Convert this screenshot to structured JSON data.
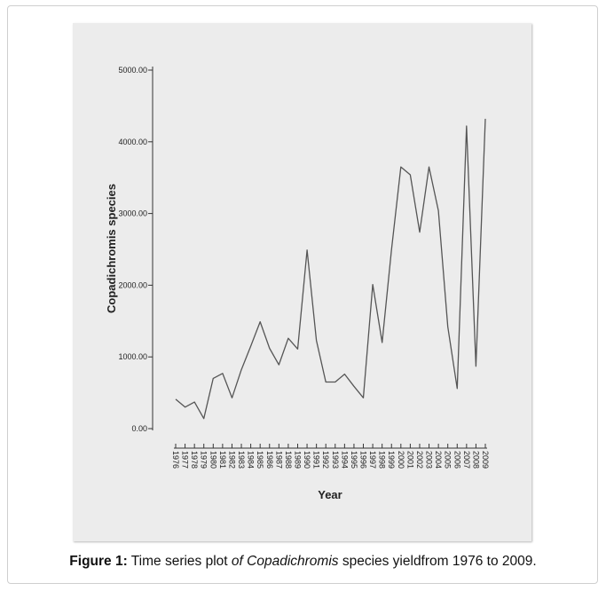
{
  "figure": {
    "caption_label": "Figure 1:",
    "caption_text_1": " Time series plot ",
    "caption_text_2": "of Copadichromis",
    "caption_text_3": " species yieldfrom 1976 to 2009."
  },
  "chart_data": {
    "type": "line",
    "title": "",
    "xlabel": "Year",
    "ylabel": "Copadichromis species",
    "ylim": [
      0,
      5000
    ],
    "yticks": [
      "0.00",
      "1000.00",
      "2000.00",
      "3000.00",
      "4000.00",
      "5000.00"
    ],
    "ytick_values": [
      0,
      1000,
      2000,
      3000,
      4000,
      5000
    ],
    "grid": false,
    "line_color": "#555555",
    "x": [
      "1976",
      "1977",
      "1978",
      "1979",
      "1980",
      "1981",
      "1982",
      "1983",
      "1984",
      "1985",
      "1986",
      "1987",
      "1988",
      "1989",
      "1990",
      "1991",
      "1992",
      "1993",
      "1994",
      "1995",
      "1996",
      "1997",
      "1998",
      "1999",
      "2000",
      "2001",
      "2002",
      "2003",
      "2004",
      "2005",
      "2006",
      "2007",
      "2008",
      "2009"
    ],
    "series": [
      {
        "values": [
          410,
          300,
          370,
          140,
          700,
          770,
          430,
          820,
          1150,
          1490,
          1120,
          890,
          1260,
          1110,
          2490,
          1230,
          650,
          650,
          760,
          590,
          430,
          2010,
          1200,
          2490,
          3650,
          3540,
          2740,
          3650,
          3040,
          1420,
          560,
          4220,
          870,
          4320
        ]
      }
    ]
  }
}
